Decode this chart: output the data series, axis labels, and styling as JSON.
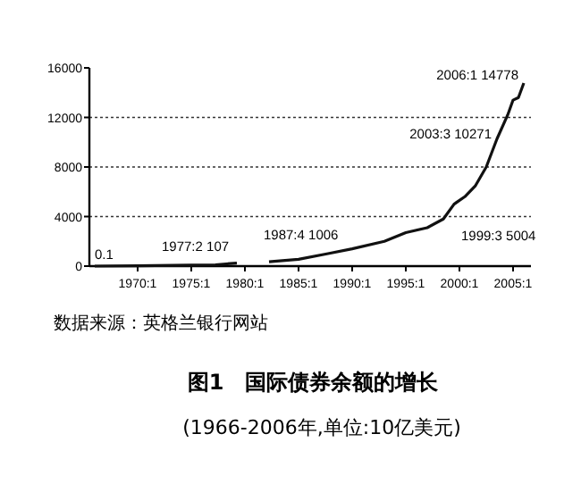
{
  "chart_data": {
    "type": "line",
    "title": "图1　国际债券余额的增长",
    "subtitle": "(1966-2006年,单位:10亿美元)",
    "series": [
      {
        "color": "#111111",
        "x": [
          "1966-01",
          "1970-01",
          "1975-01",
          "1977-04",
          "1979-04"
        ],
        "values": [
          0.1,
          30,
          80,
          107,
          250
        ]
      },
      {
        "color": "#111111",
        "x": [
          "1982-04",
          "1985-01",
          "1987-10",
          "1990-01",
          "1993-01",
          "1995-01",
          "1997-01",
          "1998-07",
          "1999-07",
          "2000-07",
          "2001-07",
          "2002-07",
          "2003-07",
          "2004-07",
          "2005-01",
          "2005-07",
          "2006-01"
        ],
        "values": [
          350,
          550,
          1006,
          1400,
          2000,
          2700,
          3100,
          3800,
          5004,
          5600,
          6500,
          8000,
          10271,
          12200,
          13400,
          13600,
          14778
        ]
      }
    ],
    "xlim": [
      "1965-07",
      "2006-09"
    ],
    "ylim": [
      0,
      16000
    ],
    "yticks": [
      0,
      4000,
      8000,
      12000,
      16000
    ],
    "xticks": [
      {
        "value": "1970-01",
        "label": "1970:1"
      },
      {
        "value": "1975-01",
        "label": "1975:1"
      },
      {
        "value": "1980-01",
        "label": "1980:1"
      },
      {
        "value": "1985-01",
        "label": "1985:1"
      },
      {
        "value": "1990-01",
        "label": "1990:1"
      },
      {
        "value": "1995-01",
        "label": "1995:1"
      },
      {
        "value": "2000-01",
        "label": "2000:1"
      },
      {
        "value": "2005-01",
        "label": "2005:1"
      }
    ],
    "grid": "y",
    "line_style": "solid",
    "marker": "none",
    "annotations": [
      {
        "text": "0.1",
        "x": "1966-01",
        "y": 0.1
      },
      {
        "text": "1977:2 107",
        "x": "1977-04",
        "y": 107
      },
      {
        "text": "1987:4 1006",
        "x": "1987-10",
        "y": 1006
      },
      {
        "text": "1999:3 5004",
        "x": "1999-07",
        "y": 5004
      },
      {
        "text": "2003:3 10271",
        "x": "2003-07",
        "y": 10271
      },
      {
        "text": "2006:1 14778",
        "x": "2006-01",
        "y": 14778
      },
      "数据来源：英格兰银行网站"
    ]
  }
}
